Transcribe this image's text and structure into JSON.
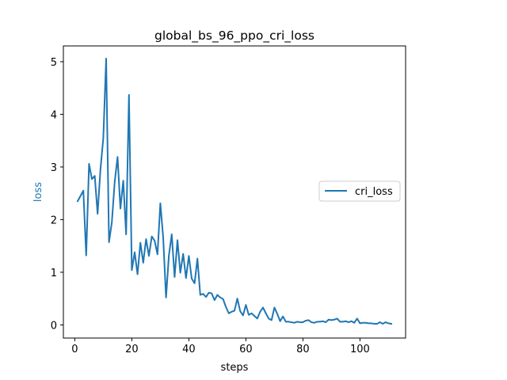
{
  "colors": {
    "series": "#1f77b4",
    "ylabel": "#1f77b4",
    "axis": "#000000"
  },
  "chart_data": {
    "type": "line",
    "title": "global_bs_96_ppo_cri_loss",
    "xlabel": "steps",
    "ylabel": "loss",
    "xlim": [
      -4,
      116
    ],
    "ylim": [
      -0.25,
      5.3
    ],
    "xticks": [
      0,
      20,
      40,
      60,
      80,
      100
    ],
    "yticks": [
      0,
      1,
      2,
      3,
      4,
      5
    ],
    "grid": false,
    "legend_position": "center-right",
    "series": [
      {
        "name": "cri_loss",
        "x": [
          1,
          2,
          3,
          4,
          5,
          6,
          7,
          8,
          9,
          10,
          11,
          12,
          13,
          14,
          15,
          16,
          17,
          18,
          19,
          20,
          21,
          22,
          23,
          24,
          25,
          26,
          27,
          28,
          29,
          30,
          31,
          32,
          33,
          34,
          35,
          36,
          37,
          38,
          39,
          40,
          41,
          42,
          43,
          44,
          45,
          46,
          47,
          48,
          49,
          50,
          51,
          52,
          53,
          54,
          55,
          56,
          57,
          58,
          59,
          60,
          61,
          62,
          63,
          64,
          65,
          66,
          67,
          68,
          69,
          70,
          71,
          72,
          73,
          74,
          75,
          76,
          77,
          78,
          79,
          80,
          81,
          82,
          83,
          84,
          85,
          86,
          87,
          88,
          89,
          90,
          91,
          92,
          93,
          94,
          95,
          96,
          97,
          98,
          99,
          100,
          101,
          102,
          103,
          104,
          105,
          106,
          107,
          108,
          109,
          110,
          111
        ],
        "y": [
          2.35,
          2.45,
          2.55,
          1.32,
          3.06,
          2.77,
          2.83,
          2.11,
          2.95,
          3.55,
          5.06,
          1.57,
          1.95,
          2.72,
          3.19,
          2.21,
          2.74,
          1.72,
          4.37,
          1.04,
          1.38,
          0.96,
          1.56,
          1.18,
          1.63,
          1.31,
          1.68,
          1.6,
          1.34,
          2.31,
          1.66,
          0.52,
          1.32,
          1.72,
          0.91,
          1.61,
          0.99,
          1.35,
          0.89,
          1.31,
          0.88,
          0.79,
          1.26,
          0.57,
          0.59,
          0.53,
          0.61,
          0.6,
          0.47,
          0.57,
          0.52,
          0.49,
          0.34,
          0.22,
          0.25,
          0.27,
          0.5,
          0.26,
          0.18,
          0.38,
          0.19,
          0.22,
          0.17,
          0.12,
          0.25,
          0.33,
          0.22,
          0.12,
          0.09,
          0.33,
          0.21,
          0.07,
          0.16,
          0.06,
          0.06,
          0.05,
          0.04,
          0.06,
          0.05,
          0.05,
          0.08,
          0.09,
          0.05,
          0.04,
          0.06,
          0.06,
          0.07,
          0.05,
          0.1,
          0.09,
          0.1,
          0.12,
          0.06,
          0.06,
          0.07,
          0.05,
          0.07,
          0.04,
          0.12,
          0.03,
          0.04,
          0.04,
          0.03,
          0.03,
          0.02,
          0.02,
          0.05,
          0.02,
          0.05,
          0.03,
          0.02
        ]
      }
    ]
  }
}
